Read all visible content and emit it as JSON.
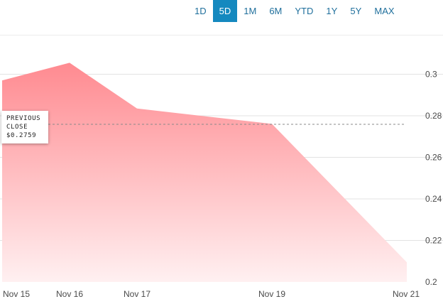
{
  "range_selector": {
    "options": [
      "1D",
      "5D",
      "1M",
      "6M",
      "YTD",
      "1Y",
      "5Y",
      "MAX"
    ],
    "selected": "5D"
  },
  "previous_close": {
    "label_line1": "PREVIOUS",
    "label_line2": "CLOSE",
    "value_text": "$0.2759",
    "value": 0.2759
  },
  "colors": {
    "area_top": "#ff8a90",
    "area_bottom": "#fff0f1",
    "accent": "#1589bf",
    "grid": "#e3e3e3"
  },
  "chart_data": {
    "type": "area",
    "x": [
      "Nov 15",
      "Nov 16",
      "Nov 17",
      "Nov 19",
      "Nov 21"
    ],
    "y": [
      0.297,
      0.3055,
      0.2835,
      0.2761,
      0.2095
    ],
    "x_positions_days": [
      15,
      16,
      17,
      19,
      21
    ],
    "x_ticks": [
      "Nov 15",
      "Nov 16",
      "Nov 17",
      "Nov 19",
      "Nov 21"
    ],
    "y_ticks": [
      "0.3",
      "0.28",
      "0.26",
      "0.24",
      "0.22",
      "0.2"
    ],
    "y_tick_values": [
      0.3,
      0.28,
      0.26,
      0.24,
      0.22,
      0.2
    ],
    "ylim": [
      0.2,
      0.31
    ],
    "reference_line": 0.2759,
    "grid": true,
    "title": "",
    "xlabel": "",
    "ylabel": ""
  }
}
